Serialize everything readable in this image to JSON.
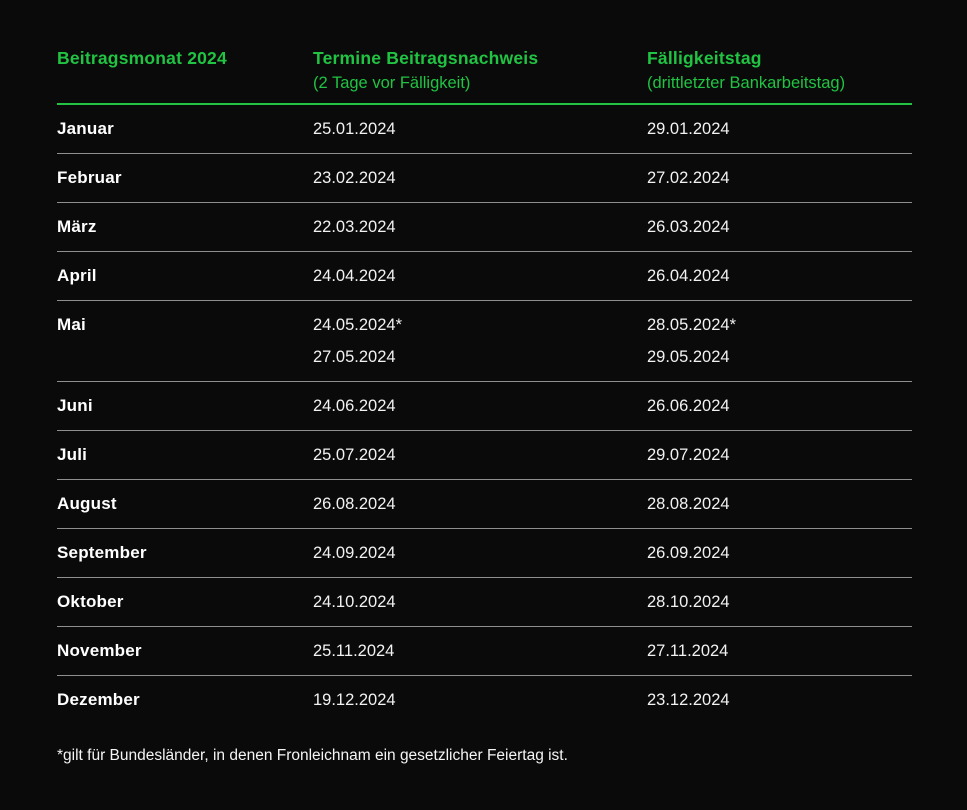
{
  "colors": {
    "background": "#0a0a0a",
    "accent_green": "#20c342",
    "row_divider": "#8f8f8f",
    "month_text": "#ffffff",
    "date_text": "#f2f2f2"
  },
  "table": {
    "headers": [
      {
        "title": "Beitragsmonat 2024",
        "subtitle": ""
      },
      {
        "title": "Termine Beitragsnachweis",
        "subtitle": "(2 Tage vor Fälligkeit)"
      },
      {
        "title": "Fälligkeitstag",
        "subtitle": "(drittletzter Bankarbeitstag)"
      }
    ],
    "rows": [
      {
        "month": "Januar",
        "nachweis": [
          "25.01.2024"
        ],
        "faelligkeit": [
          "29.01.2024"
        ]
      },
      {
        "month": "Februar",
        "nachweis": [
          "23.02.2024"
        ],
        "faelligkeit": [
          "27.02.2024"
        ]
      },
      {
        "month": "März",
        "nachweis": [
          "22.03.2024"
        ],
        "faelligkeit": [
          "26.03.2024"
        ]
      },
      {
        "month": "April",
        "nachweis": [
          "24.04.2024"
        ],
        "faelligkeit": [
          "26.04.2024"
        ]
      },
      {
        "month": "Mai",
        "nachweis": [
          "24.05.2024*",
          "27.05.2024"
        ],
        "faelligkeit": [
          "28.05.2024*",
          "29.05.2024"
        ]
      },
      {
        "month": "Juni",
        "nachweis": [
          "24.06.2024"
        ],
        "faelligkeit": [
          "26.06.2024"
        ]
      },
      {
        "month": "Juli",
        "nachweis": [
          "25.07.2024"
        ],
        "faelligkeit": [
          "29.07.2024"
        ]
      },
      {
        "month": "August",
        "nachweis": [
          "26.08.2024"
        ],
        "faelligkeit": [
          "28.08.2024"
        ]
      },
      {
        "month": "September",
        "nachweis": [
          "24.09.2024"
        ],
        "faelligkeit": [
          "26.09.2024"
        ]
      },
      {
        "month": "Oktober",
        "nachweis": [
          "24.10.2024"
        ],
        "faelligkeit": [
          "28.10.2024"
        ]
      },
      {
        "month": "November",
        "nachweis": [
          "25.11.2024"
        ],
        "faelligkeit": [
          "27.11.2024"
        ]
      },
      {
        "month": "Dezember",
        "nachweis": [
          "19.12.2024"
        ],
        "faelligkeit": [
          "23.12.2024"
        ]
      }
    ]
  },
  "footnote": "*gilt für Bundesländer, in denen Fronleichnam ein gesetzlicher Feiertag ist.",
  "chart_data": {
    "type": "table",
    "title": "Beitragsmonat 2024 – Termine Beitragsnachweis und Fälligkeitstag",
    "columns": [
      "Beitragsmonat 2024",
      "Termine Beitragsnachweis (2 Tage vor Fälligkeit)",
      "Fälligkeitstag (drittletzter Bankarbeitstag)"
    ],
    "rows": [
      [
        "Januar",
        "25.01.2024",
        "29.01.2024"
      ],
      [
        "Februar",
        "23.02.2024",
        "27.02.2024"
      ],
      [
        "März",
        "22.03.2024",
        "26.03.2024"
      ],
      [
        "April",
        "24.04.2024",
        "26.04.2024"
      ],
      [
        "Mai",
        "24.05.2024* / 27.05.2024",
        "28.05.2024* / 29.05.2024"
      ],
      [
        "Juni",
        "24.06.2024",
        "26.06.2024"
      ],
      [
        "Juli",
        "25.07.2024",
        "29.07.2024"
      ],
      [
        "August",
        "26.08.2024",
        "28.08.2024"
      ],
      [
        "September",
        "24.09.2024",
        "26.09.2024"
      ],
      [
        "Oktober",
        "24.10.2024",
        "28.10.2024"
      ],
      [
        "November",
        "25.11.2024",
        "27.11.2024"
      ],
      [
        "Dezember",
        "19.12.2024",
        "23.12.2024"
      ]
    ],
    "footnote": "*gilt für Bundesländer, in denen Fronleichnam ein gesetzlicher Feiertag ist."
  }
}
